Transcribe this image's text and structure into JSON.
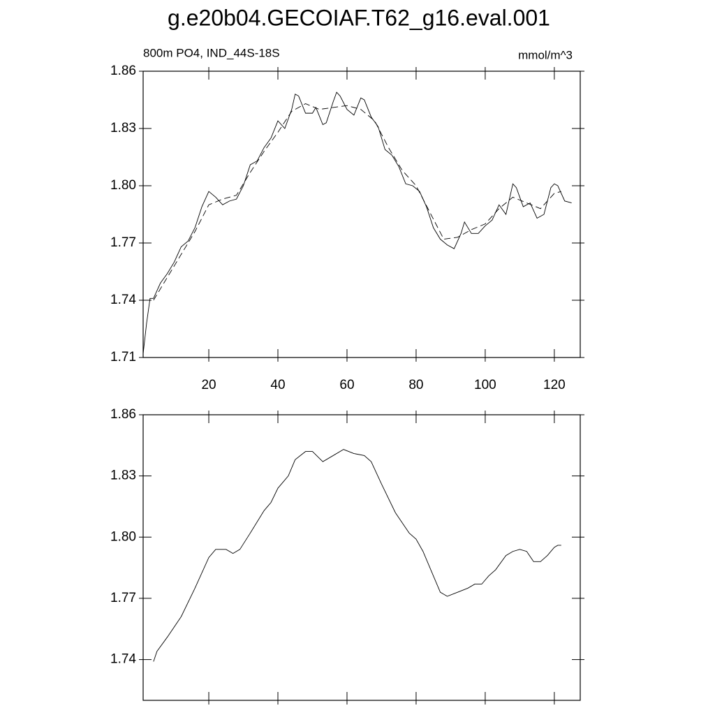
{
  "title": "g.e20b04.GECOIAF.T62_g16.eval.001",
  "chart_data": [
    {
      "type": "line",
      "subtitle": "800m PO4, IND_44S-18S",
      "units": "mmol/m^3",
      "xlim": [
        1,
        127.5
      ],
      "xticks": [
        20,
        40,
        60,
        80,
        100,
        120
      ],
      "ylim": [
        1.71,
        1.86
      ],
      "yticks": [
        1.71,
        1.74,
        1.77,
        {
          "value": 1.8,
          "label": "1.80"
        },
        1.83,
        1.86
      ],
      "series": [
        {
          "color": "#000000",
          "dashed": false,
          "x": [
            1,
            2,
            3,
            4,
            6,
            8,
            10,
            12,
            14,
            16,
            18,
            20,
            22,
            24,
            26,
            28,
            30,
            32,
            34,
            36,
            38,
            40,
            42,
            44,
            45,
            46,
            48,
            50,
            51,
            53,
            54,
            56,
            57,
            58,
            60,
            62,
            64,
            65,
            67,
            69,
            71,
            73,
            75,
            77,
            79,
            81,
            83,
            85,
            87,
            89,
            91,
            93,
            94,
            96,
            98,
            100,
            102,
            104,
            106,
            108,
            109,
            111,
            113,
            115,
            117,
            119,
            120,
            121,
            123,
            125
          ],
          "values": [
            1.712,
            1.728,
            1.741,
            1.741,
            1.749,
            1.754,
            1.76,
            1.768,
            1.771,
            1.778,
            1.789,
            1.797,
            1.794,
            1.79,
            1.792,
            1.793,
            1.8,
            1.811,
            1.813,
            1.82,
            1.825,
            1.834,
            1.83,
            1.84,
            1.848,
            1.847,
            1.838,
            1.838,
            1.841,
            1.832,
            1.833,
            1.844,
            1.849,
            1.847,
            1.84,
            1.837,
            1.846,
            1.845,
            1.836,
            1.831,
            1.819,
            1.816,
            1.81,
            1.801,
            1.8,
            1.797,
            1.789,
            1.778,
            1.772,
            1.769,
            1.767,
            1.775,
            1.781,
            1.775,
            1.775,
            1.779,
            1.782,
            1.79,
            1.785,
            1.801,
            1.799,
            1.789,
            1.791,
            1.783,
            1.785,
            1.799,
            1.801,
            1.8,
            1.792,
            1.791
          ]
        },
        {
          "color": "#000000",
          "dashed": true,
          "x": [
            4,
            8,
            12,
            16,
            20,
            24,
            28,
            32,
            36,
            40,
            44,
            48,
            52,
            56,
            60,
            64,
            68,
            72,
            76,
            80,
            84,
            88,
            92,
            96,
            100,
            104,
            108,
            112,
            116,
            120,
            122
          ],
          "values": [
            1.74,
            1.752,
            1.764,
            1.776,
            1.79,
            1.793,
            1.795,
            1.807,
            1.818,
            1.828,
            1.839,
            1.843,
            1.84,
            1.841,
            1.842,
            1.84,
            1.834,
            1.82,
            1.808,
            1.8,
            1.786,
            1.772,
            1.773,
            1.777,
            1.78,
            1.788,
            1.794,
            1.791,
            1.788,
            1.796,
            1.797
          ]
        }
      ]
    },
    {
      "type": "line",
      "xlim": [
        1,
        127.5
      ],
      "ylim": [
        1.72,
        1.86
      ],
      "yticks": [
        1.74,
        1.77,
        {
          "value": 1.8,
          "label": "1.80"
        },
        1.83,
        1.86
      ],
      "series": [
        {
          "color": "#000000",
          "dashed": false,
          "x": [
            4,
            5,
            8,
            12,
            16,
            20,
            22,
            25,
            27,
            29,
            32,
            36,
            38,
            40,
            43,
            45,
            48,
            50,
            53,
            56,
            59,
            62,
            65,
            67,
            70,
            74,
            78,
            80,
            82,
            85,
            87,
            89,
            92,
            95,
            97,
            99,
            101,
            103,
            106,
            108,
            110,
            112,
            114,
            116,
            118,
            120,
            121,
            122
          ],
          "values": [
            1.739,
            1.744,
            1.751,
            1.761,
            1.775,
            1.79,
            1.794,
            1.794,
            1.792,
            1.794,
            1.802,
            1.813,
            1.817,
            1.824,
            1.83,
            1.838,
            1.842,
            1.842,
            1.837,
            1.84,
            1.843,
            1.841,
            1.84,
            1.837,
            1.826,
            1.812,
            1.802,
            1.799,
            1.793,
            1.781,
            1.773,
            1.771,
            1.773,
            1.775,
            1.777,
            1.777,
            1.781,
            1.784,
            1.791,
            1.793,
            1.794,
            1.793,
            1.788,
            1.788,
            1.791,
            1.795,
            1.796,
            1.796
          ]
        }
      ]
    }
  ]
}
